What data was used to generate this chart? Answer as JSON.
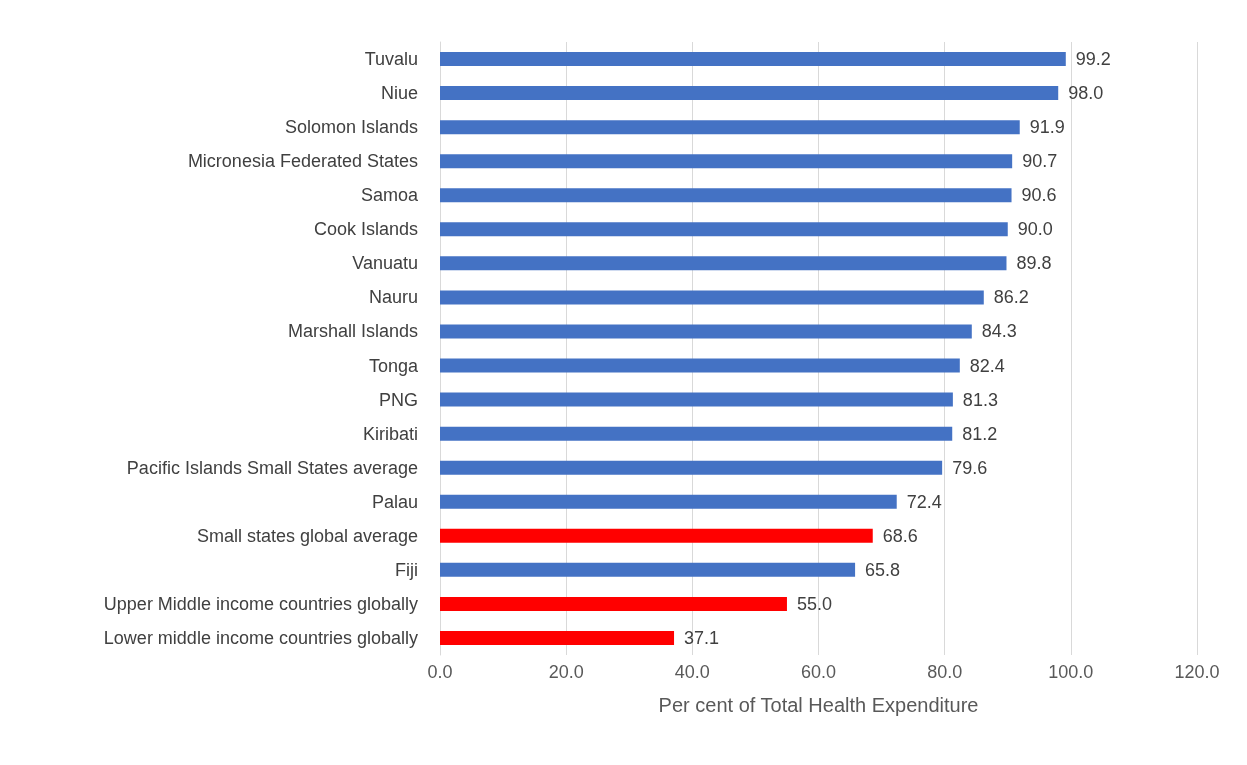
{
  "chart_data": {
    "type": "bar",
    "orientation": "horizontal",
    "xlabel": "Per cent of Total Health Expenditure",
    "categories": [
      "Tuvalu",
      "Niue",
      "Solomon Islands",
      "Micronesia Federated States",
      "Samoa",
      "Cook Islands",
      "Vanuatu",
      "Nauru",
      "Marshall Islands",
      "Tonga",
      "PNG",
      "Kiribati",
      "Pacific Islands Small States average",
      "Palau",
      "Small states global average",
      "Fiji",
      "Upper Middle income countries globally",
      "Lower middle income countries globally"
    ],
    "values": [
      99.2,
      98.0,
      91.9,
      90.7,
      90.6,
      90.0,
      89.8,
      86.2,
      84.3,
      82.4,
      81.3,
      81.2,
      79.6,
      72.4,
      68.6,
      65.8,
      55.0,
      37.1
    ],
    "value_labels": [
      "99.2",
      "98.0",
      "91.9",
      "90.7",
      "90.6",
      "90.0",
      "89.8",
      "86.2",
      "84.3",
      "82.4",
      "81.3",
      "81.2",
      "79.6",
      "72.4",
      "68.6",
      "65.8",
      "55.0",
      "37.1"
    ],
    "colors": [
      "#4472c4",
      "#4472c4",
      "#4472c4",
      "#4472c4",
      "#4472c4",
      "#4472c4",
      "#4472c4",
      "#4472c4",
      "#4472c4",
      "#4472c4",
      "#4472c4",
      "#4472c4",
      "#4472c4",
      "#4472c4",
      "#ff0000",
      "#4472c4",
      "#ff0000",
      "#ff0000"
    ],
    "xlim": [
      0,
      120
    ],
    "xticks": [
      {
        "value": 0,
        "label": "0.0"
      },
      {
        "value": 20,
        "label": "20.0"
      },
      {
        "value": 40,
        "label": "40.0"
      },
      {
        "value": 60,
        "label": "60.0"
      },
      {
        "value": 80,
        "label": "80.0"
      },
      {
        "value": 100,
        "label": "100.0"
      },
      {
        "value": 120,
        "label": "120.0"
      }
    ],
    "grid": "x"
  }
}
